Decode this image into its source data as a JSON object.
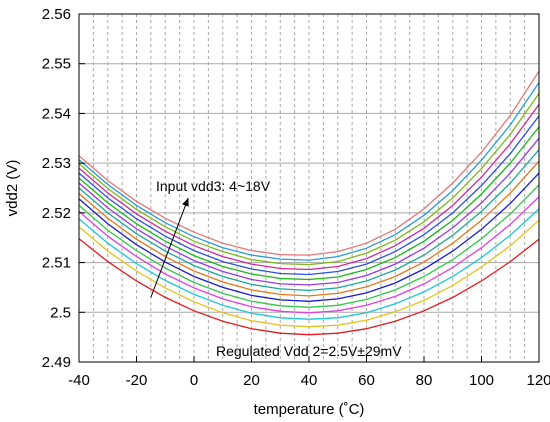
{
  "chart_data": {
    "type": "line",
    "xlabel": "temperature (˚C)",
    "ylabel": "vdd2 (V)",
    "xlim": [
      -40,
      120
    ],
    "ylim": [
      2.49,
      2.56
    ],
    "x_ticks": [
      -40,
      -20,
      0,
      20,
      40,
      60,
      80,
      100,
      120
    ],
    "x_tick_labels": [
      "-40",
      "-20",
      "0",
      "20",
      "40",
      "60",
      "80",
      "100",
      "120"
    ],
    "y_ticks": [
      2.49,
      2.5,
      2.51,
      2.52,
      2.53,
      2.54,
      2.55,
      2.56
    ],
    "y_tick_labels": [
      "2.49",
      "2.5",
      "2.51",
      "2.52",
      "2.53",
      "2.54",
      "2.55",
      "2.56"
    ],
    "grid": true,
    "grid_style": "dashed vertical every 5°C, solid horizontal at y ticks",
    "x": [
      -40,
      -30,
      -20,
      -10,
      0,
      10,
      20,
      30,
      40,
      50,
      60,
      70,
      80,
      90,
      100,
      110,
      120
    ],
    "series": [
      {
        "color": "#e31a1c",
        "values": [
          2.5148,
          2.5102,
          2.5063,
          2.503,
          2.5003,
          2.4982,
          2.4967,
          2.4958,
          2.4955,
          2.4958,
          2.4967,
          2.4982,
          2.5003,
          2.503,
          2.5063,
          2.5102,
          2.5147
        ]
      },
      {
        "color": "#e8c21a",
        "values": [
          2.5172,
          2.5123,
          2.5083,
          2.5049,
          2.5021,
          2.4999,
          2.4983,
          2.4974,
          2.4971,
          2.4974,
          2.4984,
          2.5001,
          2.5024,
          2.5054,
          2.5091,
          2.5134,
          2.5185
        ]
      },
      {
        "color": "#19c7d8",
        "values": [
          2.5188,
          2.5139,
          2.5098,
          2.5064,
          2.5036,
          2.5014,
          2.4998,
          2.4989,
          2.4986,
          2.4989,
          2.4999,
          2.5017,
          2.5041,
          2.5072,
          2.511,
          2.5155,
          2.5208
        ]
      },
      {
        "color": "#e040e0",
        "values": [
          2.5203,
          2.5153,
          2.5112,
          2.5077,
          2.5049,
          2.5027,
          2.5011,
          2.5002,
          2.4999,
          2.5003,
          2.5014,
          2.5032,
          2.5057,
          2.509,
          2.513,
          2.5177,
          2.5232
        ]
      },
      {
        "color": "#33c74a",
        "values": [
          2.5215,
          2.5165,
          2.5124,
          2.5089,
          2.506,
          2.5038,
          2.5022,
          2.5013,
          2.501,
          2.5014,
          2.5026,
          2.5045,
          2.5072,
          2.5106,
          2.5148,
          2.5198,
          2.5256
        ]
      },
      {
        "color": "#1a1acc",
        "values": [
          2.5228,
          2.5178,
          2.5136,
          2.5101,
          2.5072,
          2.505,
          2.5034,
          2.5025,
          2.5022,
          2.5027,
          2.5039,
          2.5059,
          2.5087,
          2.5123,
          2.5167,
          2.5219,
          2.528
        ]
      },
      {
        "color": "#e0781a",
        "values": [
          2.5239,
          2.5189,
          2.5147,
          2.5112,
          2.5083,
          2.5061,
          2.5045,
          2.5036,
          2.5033,
          2.5038,
          2.5051,
          2.5072,
          2.5101,
          2.5139,
          2.5185,
          2.524,
          2.5304
        ]
      },
      {
        "color": "#1aa89a",
        "values": [
          2.525,
          2.52,
          2.5158,
          2.5123,
          2.5094,
          2.5072,
          2.5056,
          2.5047,
          2.5044,
          2.5049,
          2.5063,
          2.5085,
          2.5115,
          2.5155,
          2.5203,
          2.526,
          2.5327
        ]
      },
      {
        "color": "#9a3ad8",
        "values": [
          2.526,
          2.521,
          2.5168,
          2.5133,
          2.5104,
          2.5082,
          2.5066,
          2.5057,
          2.5055,
          2.506,
          2.5074,
          2.5097,
          2.5129,
          2.517,
          2.522,
          2.528,
          2.535
        ]
      },
      {
        "color": "#18b818",
        "values": [
          2.527,
          2.522,
          2.5178,
          2.5143,
          2.5114,
          2.5092,
          2.5077,
          2.5068,
          2.5066,
          2.5071,
          2.5086,
          2.511,
          2.5143,
          2.5185,
          2.5238,
          2.53,
          2.5373
        ]
      },
      {
        "color": "#2a52e0",
        "values": [
          2.528,
          2.523,
          2.5188,
          2.5153,
          2.5124,
          2.5102,
          2.5087,
          2.5078,
          2.5076,
          2.5082,
          2.5097,
          2.5122,
          2.5156,
          2.52,
          2.5255,
          2.5319,
          2.5395
        ]
      },
      {
        "color": "#cc2a9a",
        "values": [
          2.529,
          2.524,
          2.5198,
          2.5163,
          2.5134,
          2.5112,
          2.5097,
          2.5088,
          2.5086,
          2.5092,
          2.5108,
          2.5134,
          2.5169,
          2.5215,
          2.5272,
          2.5339,
          2.5418
        ]
      },
      {
        "color": "#7ab81a",
        "values": [
          2.5299,
          2.5249,
          2.5207,
          2.5172,
          2.5143,
          2.5122,
          2.5106,
          2.5098,
          2.5096,
          2.5102,
          2.5119,
          2.5145,
          2.5182,
          2.523,
          2.5289,
          2.5358,
          2.544
        ]
      },
      {
        "color": "#2a9ad8",
        "values": [
          2.5307,
          2.5257,
          2.5215,
          2.518,
          2.5152,
          2.513,
          2.5115,
          2.5107,
          2.5105,
          2.5112,
          2.5129,
          2.5156,
          2.5195,
          2.5245,
          2.5306,
          2.5377,
          2.5462
        ]
      },
      {
        "color": "#e07878",
        "values": [
          2.5315,
          2.5265,
          2.5223,
          2.5189,
          2.5161,
          2.5139,
          2.5124,
          2.5116,
          2.5115,
          2.5122,
          2.5139,
          2.5167,
          2.5208,
          2.526,
          2.5322,
          2.5396,
          2.5485
        ]
      }
    ],
    "annotations": [
      {
        "text": "Input vdd3: 4~18V"
      },
      {
        "text": "Regulated Vdd 2=2.5V±29mV"
      }
    ],
    "arrow": {
      "from": [
        -15,
        2.503
      ],
      "to": [
        -2,
        2.523
      ]
    }
  }
}
